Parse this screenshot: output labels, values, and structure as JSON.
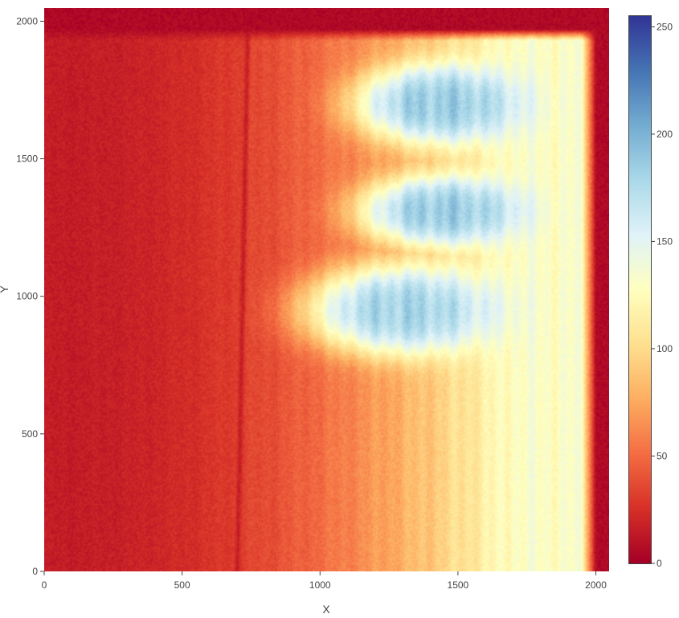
{
  "chart_data": {
    "type": "heatmap",
    "title": "",
    "xlabel": "X",
    "ylabel": "Y",
    "x_range": [
      0,
      2048
    ],
    "y_range": [
      0,
      2048
    ],
    "x_ticks": [
      0,
      500,
      1000,
      1500,
      2000
    ],
    "y_ticks": [
      0,
      500,
      1000,
      1500,
      2000
    ],
    "colorscale": "RdYlBu",
    "color_range": [
      0,
      255
    ],
    "colorbar_ticks": [
      0,
      50,
      100,
      150,
      200,
      250
    ],
    "features": [
      {
        "kind": "bright_blob",
        "x_center": 1430,
        "y_center": 1700,
        "x_halfwidth": 330,
        "y_halfwidth": 160,
        "value": 185
      },
      {
        "kind": "bright_blob",
        "x_center": 1440,
        "y_center": 1310,
        "x_halfwidth": 320,
        "y_halfwidth": 140,
        "value": 185
      },
      {
        "kind": "bright_blob",
        "x_center": 1300,
        "y_center": 950,
        "x_halfwidth": 380,
        "y_halfwidth": 180,
        "value": 180
      },
      {
        "kind": "dark_streak",
        "x_bottom": 700,
        "x_top": 740,
        "value": 20
      },
      {
        "kind": "dark_border",
        "edge": "top",
        "y_from": 1930,
        "value": 5
      },
      {
        "kind": "dark_border",
        "edge": "right",
        "x_from": 1950,
        "value": 5
      }
    ],
    "gradient": {
      "left_value": 15,
      "right_value": 130,
      "x_peak": 1700
    }
  }
}
